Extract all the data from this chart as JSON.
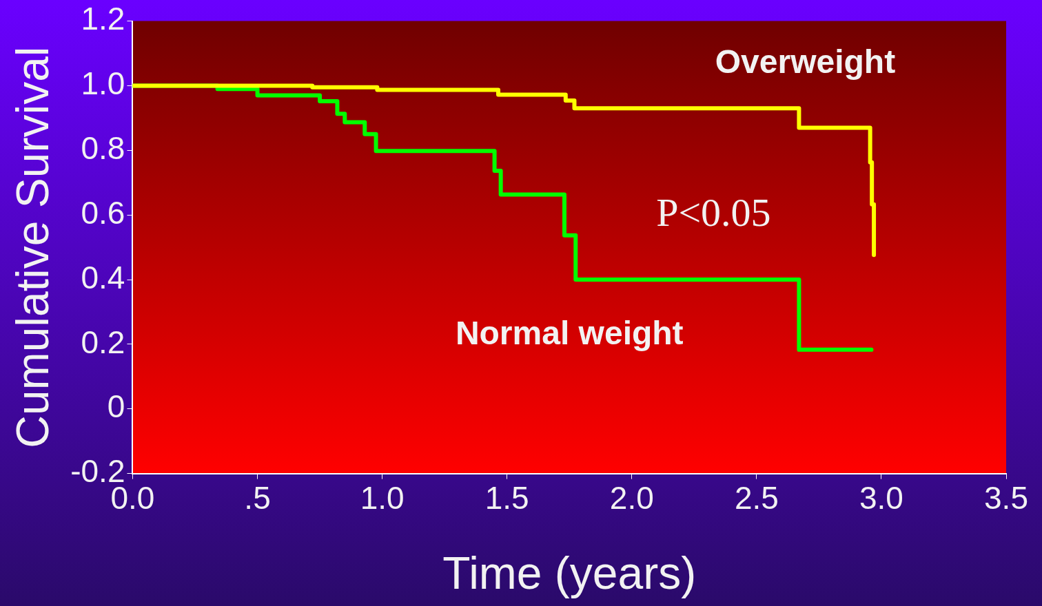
{
  "chart_data": {
    "type": "step",
    "xlabel": "Time (years)",
    "ylabel": "Cumulative Survival",
    "xlim": [
      0,
      3.5
    ],
    "xticks": [
      {
        "value": 0,
        "label": "0.0"
      },
      {
        "value": 0.5,
        "label": ".5"
      },
      {
        "value": 1,
        "label": "1.0"
      },
      1.5,
      {
        "value": 2,
        "label": "2.0"
      },
      2.5,
      {
        "value": 3,
        "label": "3.0"
      },
      3.5
    ],
    "ylim": [
      -0.2,
      1.2
    ],
    "yticks": [
      -0.2,
      0,
      0.2,
      0.4,
      0.6,
      0.8,
      {
        "value": 1,
        "label": "1.0"
      },
      1.2
    ],
    "series": [
      {
        "name": "Overweight",
        "color": "#ffff00",
        "x": [
          0,
          0.72,
          0.98,
          1.465,
          1.735,
          1.77,
          2.67,
          2.955,
          2.962,
          2.97,
          2.97
        ],
        "values": [
          1.0,
          0.995,
          0.987,
          0.972,
          0.954,
          0.93,
          0.87,
          0.763,
          0.633,
          0.476,
          0.476
        ]
      },
      {
        "name": "Normal weight",
        "color": "#00ff00",
        "x": [
          0,
          0.34,
          0.5,
          0.75,
          0.82,
          0.85,
          0.93,
          0.975,
          1.45,
          1.475,
          1.73,
          1.775,
          2.67,
          2.96
        ],
        "values": [
          1.0,
          0.99,
          0.97,
          0.952,
          0.913,
          0.887,
          0.85,
          0.798,
          0.737,
          0.663,
          0.537,
          0.4,
          0.183,
          0.183
        ]
      }
    ],
    "annotations": [
      "P<0.05"
    ],
    "grid": false,
    "legend": false,
    "marker": "none",
    "line_style": "solid"
  }
}
